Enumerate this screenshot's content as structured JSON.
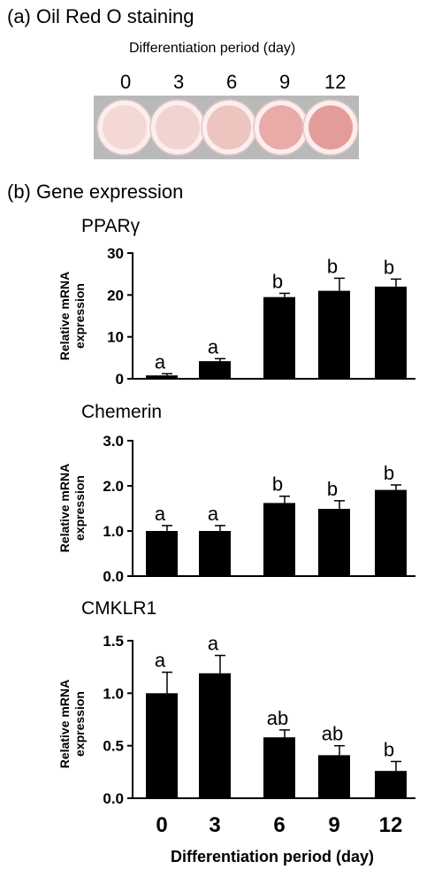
{
  "panel_a": {
    "title": "(a)   Oil Red O staining",
    "subtitle": "Differentiation period (day)",
    "days": [
      "0",
      "3",
      "6",
      "9",
      "12"
    ],
    "dish_colors": [
      "#f4d8d4",
      "#f1d3d0",
      "#eec4bf",
      "#e9aaa8",
      "#e49c9a"
    ]
  },
  "panel_b": {
    "title": "(b)   Gene expression"
  },
  "chart_data": [
    {
      "type": "bar",
      "title": "PPARγ",
      "ylabel": "Relative mRNA expression",
      "categories": [
        "0",
        "3",
        "6",
        "9",
        "12"
      ],
      "values": [
        0.8,
        4.2,
        19.5,
        21.0,
        22.0
      ],
      "errors": [
        0.4,
        0.6,
        0.9,
        3.0,
        1.8
      ],
      "letters": [
        "a",
        "a",
        "b",
        "b",
        "b"
      ],
      "ylim": [
        0,
        30
      ],
      "yticks": [
        "0",
        "10",
        "20",
        "30"
      ],
      "ytick_values": [
        0,
        10,
        20,
        30
      ]
    },
    {
      "type": "bar",
      "title": "Chemerin",
      "ylabel": "Relative mRNA expression",
      "categories": [
        "0",
        "3",
        "6",
        "9",
        "12"
      ],
      "values": [
        1.0,
        1.0,
        1.62,
        1.49,
        1.91
      ],
      "errors": [
        0.12,
        0.12,
        0.15,
        0.18,
        0.11
      ],
      "letters": [
        "a",
        "a",
        "b",
        "b",
        "b"
      ],
      "ylim": [
        0,
        3
      ],
      "yticks": [
        "0.0",
        "1.0",
        "2.0",
        "3.0"
      ],
      "ytick_values": [
        0,
        1,
        2,
        3
      ]
    },
    {
      "type": "bar",
      "title": "CMKLR1",
      "ylabel": "Relative mRNA expression",
      "xlabel": "Differentiation period (day)",
      "categories": [
        "0",
        "3",
        "6",
        "9",
        "12"
      ],
      "values": [
        1.0,
        1.19,
        0.58,
        0.41,
        0.26
      ],
      "errors": [
        0.2,
        0.17,
        0.07,
        0.09,
        0.09
      ],
      "letters": [
        "a",
        "a",
        "ab",
        "ab",
        "b"
      ],
      "ylim": [
        0,
        1.5
      ],
      "yticks": [
        "0.0",
        "0.5",
        "1.0",
        "1.5"
      ],
      "ytick_values": [
        0,
        0.5,
        1.0,
        1.5
      ]
    }
  ]
}
